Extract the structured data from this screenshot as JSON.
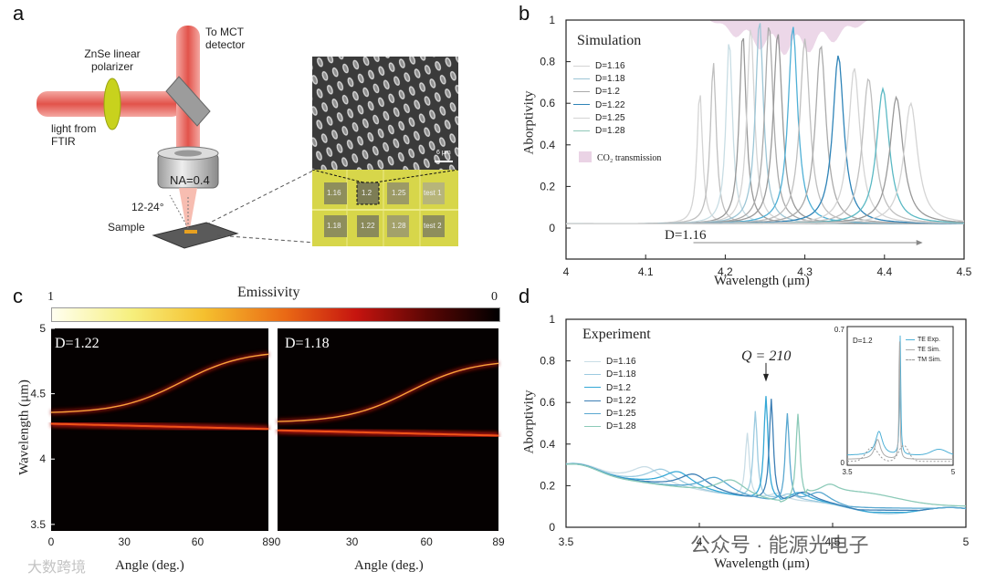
{
  "figure": {
    "panel_labels": [
      "a",
      "b",
      "c",
      "d"
    ],
    "watermark": "公众号 · 能源光电子",
    "watermark_logo": "大数跨境"
  },
  "panel_a": {
    "mct_label": "To MCT detector",
    "polarizer_label": "ZnSe linear polarizer",
    "light_label": "light from FTIR",
    "na_label": "NA=0.4",
    "angle_label": "12-24°",
    "sample_label": "Sample",
    "sem_scale": "6 μm",
    "cells": [
      "1.16",
      "1.2",
      "1.25",
      "test 1",
      "1.18",
      "1.22",
      "1.28",
      "test 2"
    ]
  },
  "chart_data": [
    {
      "id": "b",
      "type": "line",
      "title": "Simulation",
      "xlabel": "Wavelength (μm)",
      "ylabel": "Aborptivity",
      "xlim": [
        4,
        4.5
      ],
      "ylim": [
        0,
        1
      ],
      "xticks": [
        "4",
        "4.1",
        "4.2",
        "4.3",
        "4.4",
        "4.5"
      ],
      "yticks": [
        "0",
        "0.2",
        "0.4",
        "0.6",
        "0.8",
        "1"
      ],
      "legend": [
        "D=1.16",
        "D=1.18",
        "D=1.2",
        "D=1.22",
        "D=1.25",
        "D=1.28"
      ],
      "legend_extra": "CO₂ transmission",
      "arrow_label": "D=1.16",
      "peaks": [
        {
          "x": 4.168,
          "y": 0.66
        },
        {
          "x": 4.185,
          "y": 0.8
        },
        {
          "x": 4.205,
          "y": 0.91
        },
        {
          "x": 4.222,
          "y": 0.94
        },
        {
          "x": 4.232,
          "y": 0.97
        },
        {
          "x": 4.243,
          "y": 1.0
        },
        {
          "x": 4.255,
          "y": 0.98
        },
        {
          "x": 4.266,
          "y": 0.94
        },
        {
          "x": 4.285,
          "y": 0.97
        },
        {
          "x": 4.3,
          "y": 0.91
        },
        {
          "x": 4.32,
          "y": 0.88
        },
        {
          "x": 4.342,
          "y": 0.83
        },
        {
          "x": 4.362,
          "y": 0.77
        },
        {
          "x": 4.38,
          "y": 0.72
        },
        {
          "x": 4.398,
          "y": 0.67
        },
        {
          "x": 4.415,
          "y": 0.63
        },
        {
          "x": 4.433,
          "y": 0.6
        }
      ],
      "baseline": 0.02,
      "co2_band": {
        "x_start": 4.18,
        "x_end": 4.38,
        "min_y": 0.83
      }
    },
    {
      "id": "d",
      "type": "line",
      "title": "Experiment",
      "xlabel": "Wavelength (μm)",
      "ylabel": "Aborptivity",
      "xlim": [
        3.5,
        5
      ],
      "ylim": [
        0,
        1
      ],
      "xticks": [
        "3.5",
        "4",
        "4.5",
        "5"
      ],
      "yticks": [
        "0",
        "0.2",
        "0.4",
        "0.6",
        "0.8",
        "1"
      ],
      "legend": [
        "D=1.16",
        "D=1.18",
        "D=1.2",
        "D=1.22",
        "D=1.25",
        "D=1.28"
      ],
      "annotation": "Q = 210",
      "series": [
        {
          "name": "D=1.16",
          "peak_x": 4.18,
          "peak_y": 0.46,
          "bump_x": 3.8
        },
        {
          "name": "D=1.18",
          "peak_x": 4.21,
          "peak_y": 0.57,
          "bump_x": 3.86
        },
        {
          "name": "D=1.2",
          "peak_x": 4.25,
          "peak_y": 0.65,
          "bump_x": 3.92
        },
        {
          "name": "D=1.22",
          "peak_x": 4.27,
          "peak_y": 0.64,
          "bump_x": 3.98
        },
        {
          "name": "D=1.25",
          "peak_x": 4.33,
          "peak_y": 0.58,
          "bump_x": 4.06
        },
        {
          "name": "D=1.28",
          "peak_x": 4.37,
          "peak_y": 0.57,
          "bump_x": 4.12
        }
      ],
      "inset": {
        "label": "D=1.2",
        "xlim": [
          3.5,
          5
        ],
        "ylim": [
          0,
          0.7
        ],
        "xticks": [
          "3.5",
          "5"
        ],
        "yticks": [
          "0",
          "0.7"
        ],
        "legend": [
          "TE Exp.",
          "TE Sim.",
          "TM Sim."
        ]
      }
    },
    {
      "id": "c",
      "type": "heatmap",
      "colorbar_label": "Emissivity",
      "colorbar_left": "1",
      "colorbar_right": "0",
      "ylabel": "Wavelength (μm)",
      "xlabel": "Angle (deg.)",
      "maps": [
        {
          "label": "D=1.22",
          "xticks": [
            "0",
            "30",
            "60",
            "89"
          ]
        },
        {
          "label": "D=1.18",
          "xticks": [
            "0",
            "30",
            "60",
            "89"
          ]
        }
      ],
      "yticks": [
        "3.5",
        "4",
        "4.5",
        "5"
      ]
    }
  ]
}
